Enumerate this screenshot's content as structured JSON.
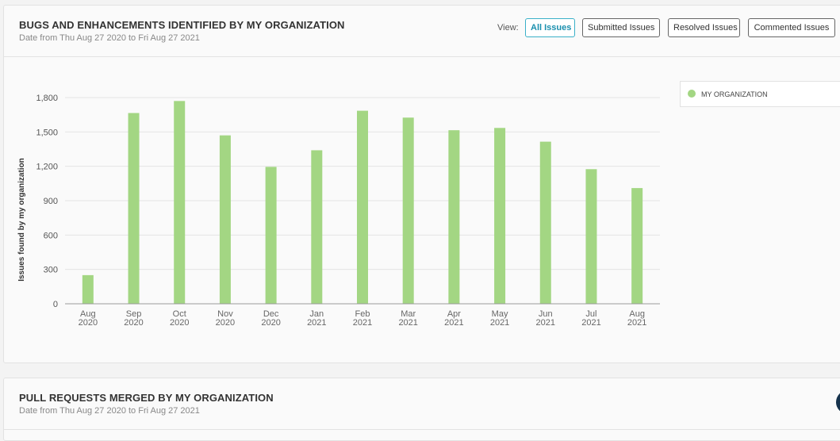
{
  "bugs_panel": {
    "title": "BUGS AND ENHANCEMENTS IDENTIFIED BY MY ORGANIZATION",
    "subtitle": "Date from Thu Aug 27 2020 to Fri Aug 27 2021",
    "view_label": "View:",
    "view_buttons": [
      {
        "label": "All Issues",
        "active": true
      },
      {
        "label": "Submitted Issues",
        "active": false
      },
      {
        "label": "Resolved Issues",
        "active": false
      },
      {
        "label": "Commented Issues",
        "active": false
      }
    ],
    "legend": [
      {
        "label": "MY ORGANIZATION",
        "color": "#a3d683"
      }
    ]
  },
  "prs_panel": {
    "title": "PULL REQUESTS MERGED BY MY ORGANIZATION",
    "subtitle": "Date from Thu Aug 27 2020 to Fri Aug 27 2021"
  },
  "chart_data": {
    "type": "bar",
    "categories": [
      {
        "month": "Aug",
        "year": "2020"
      },
      {
        "month": "Sep",
        "year": "2020"
      },
      {
        "month": "Oct",
        "year": "2020"
      },
      {
        "month": "Nov",
        "year": "2020"
      },
      {
        "month": "Dec",
        "year": "2020"
      },
      {
        "month": "Jan",
        "year": "2021"
      },
      {
        "month": "Feb",
        "year": "2021"
      },
      {
        "month": "Mar",
        "year": "2021"
      },
      {
        "month": "Apr",
        "year": "2021"
      },
      {
        "month": "May",
        "year": "2021"
      },
      {
        "month": "Jun",
        "year": "2021"
      },
      {
        "month": "Jul",
        "year": "2021"
      },
      {
        "month": "Aug",
        "year": "2021"
      }
    ],
    "series": [
      {
        "name": "MY ORGANIZATION",
        "color": "#a3d683",
        "values": [
          250,
          1665,
          1770,
          1470,
          1195,
          1340,
          1685,
          1625,
          1515,
          1535,
          1415,
          1175,
          1010
        ]
      }
    ],
    "xlabel": "",
    "ylabel": "Issues found by my organization",
    "ylim": [
      0,
      1800
    ],
    "yticks": [
      0,
      300,
      600,
      900,
      1200,
      1500,
      1800
    ],
    "ytick_labels": [
      "0",
      "300",
      "600",
      "900",
      "1,200",
      "1,500",
      "1,800"
    ],
    "grid": true,
    "legend_position": "top-right"
  }
}
